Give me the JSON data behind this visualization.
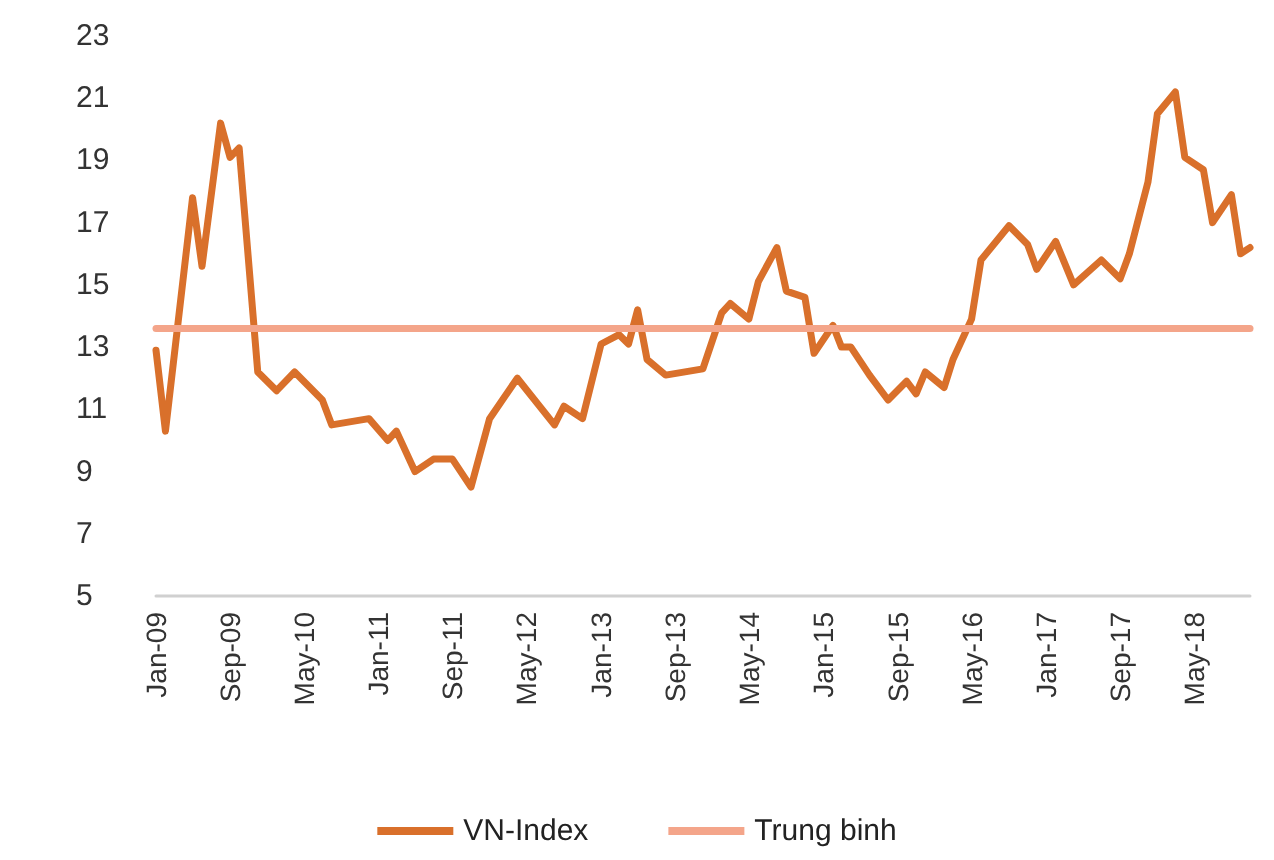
{
  "chart_data": {
    "type": "line",
    "x": [
      "2009-01",
      "2009-02",
      "2009-05",
      "2009-06",
      "2009-08",
      "2009-09",
      "2009-10",
      "2009-12",
      "2010-02",
      "2010-04",
      "2010-07",
      "2010-08",
      "2010-12",
      "2011-02",
      "2011-03",
      "2011-05",
      "2011-07",
      "2011-09",
      "2011-11",
      "2012-01",
      "2012-04",
      "2012-08",
      "2012-09",
      "2012-11",
      "2013-01",
      "2013-03",
      "2013-04",
      "2013-05",
      "2013-06",
      "2013-08",
      "2013-12",
      "2014-02",
      "2014-03",
      "2014-05",
      "2014-06",
      "2014-08",
      "2014-09",
      "2014-11",
      "2014-12",
      "2015-02",
      "2015-03",
      "2015-04",
      "2015-06",
      "2015-08",
      "2015-10",
      "2015-11",
      "2015-12",
      "2016-02",
      "2016-03",
      "2016-05",
      "2016-06",
      "2016-09",
      "2016-11",
      "2016-12",
      "2017-02",
      "2017-04",
      "2017-07",
      "2017-09",
      "2017-10",
      "2017-12",
      "2018-01",
      "2018-03",
      "2018-04",
      "2018-06",
      "2018-07",
      "2018-09",
      "2018-10",
      "2018-11"
    ],
    "series": [
      {
        "name": "VN-Index",
        "color": "#d9702b",
        "values": [
          12.9,
          10.3,
          17.8,
          15.6,
          20.2,
          19.1,
          19.4,
          12.2,
          11.6,
          12.2,
          11.3,
          10.5,
          10.7,
          10.0,
          10.3,
          9.0,
          9.4,
          9.4,
          8.5,
          10.7,
          12.0,
          10.5,
          11.1,
          10.7,
          13.1,
          13.4,
          13.1,
          14.2,
          12.6,
          12.1,
          12.3,
          14.1,
          14.4,
          13.9,
          15.1,
          16.2,
          14.8,
          14.6,
          12.8,
          13.7,
          13.0,
          13.0,
          12.1,
          11.3,
          11.9,
          11.5,
          12.2,
          11.7,
          12.6,
          13.9,
          15.8,
          16.9,
          16.3,
          15.5,
          16.4,
          15.0,
          15.8,
          15.2,
          16.0,
          18.3,
          20.5,
          21.2,
          19.1,
          18.7,
          17.0,
          17.9,
          16.0,
          16.2
        ]
      },
      {
        "name": "Trung binh",
        "color": "#f4a58a",
        "x": [
          "2009-01",
          "2018-11"
        ],
        "values": [
          13.6,
          13.6
        ]
      }
    ],
    "xlim": [
      "2009-01",
      "2018-11"
    ],
    "xticks": [
      {
        "value": "2009-01",
        "label": "Jan-09"
      },
      {
        "value": "2009-09",
        "label": "Sep-09"
      },
      {
        "value": "2010-05",
        "label": "May-10"
      },
      {
        "value": "2011-01",
        "label": "Jan-11"
      },
      {
        "value": "2011-09",
        "label": "Sep-11"
      },
      {
        "value": "2012-05",
        "label": "May-12"
      },
      {
        "value": "2013-01",
        "label": "Jan-13"
      },
      {
        "value": "2013-09",
        "label": "Sep-13"
      },
      {
        "value": "2014-05",
        "label": "May-14"
      },
      {
        "value": "2015-01",
        "label": "Jan-15"
      },
      {
        "value": "2015-09",
        "label": "Sep-15"
      },
      {
        "value": "2016-05",
        "label": "May-16"
      },
      {
        "value": "2017-01",
        "label": "Jan-17"
      },
      {
        "value": "2017-09",
        "label": "Sep-17"
      },
      {
        "value": "2018-05",
        "label": "May-18"
      }
    ],
    "ylim": [
      5,
      23
    ],
    "yticks": [
      5,
      7,
      9,
      11,
      13,
      15,
      17,
      19,
      21,
      23
    ],
    "legend": "bottom",
    "marker": "none",
    "line_style": "solid"
  }
}
